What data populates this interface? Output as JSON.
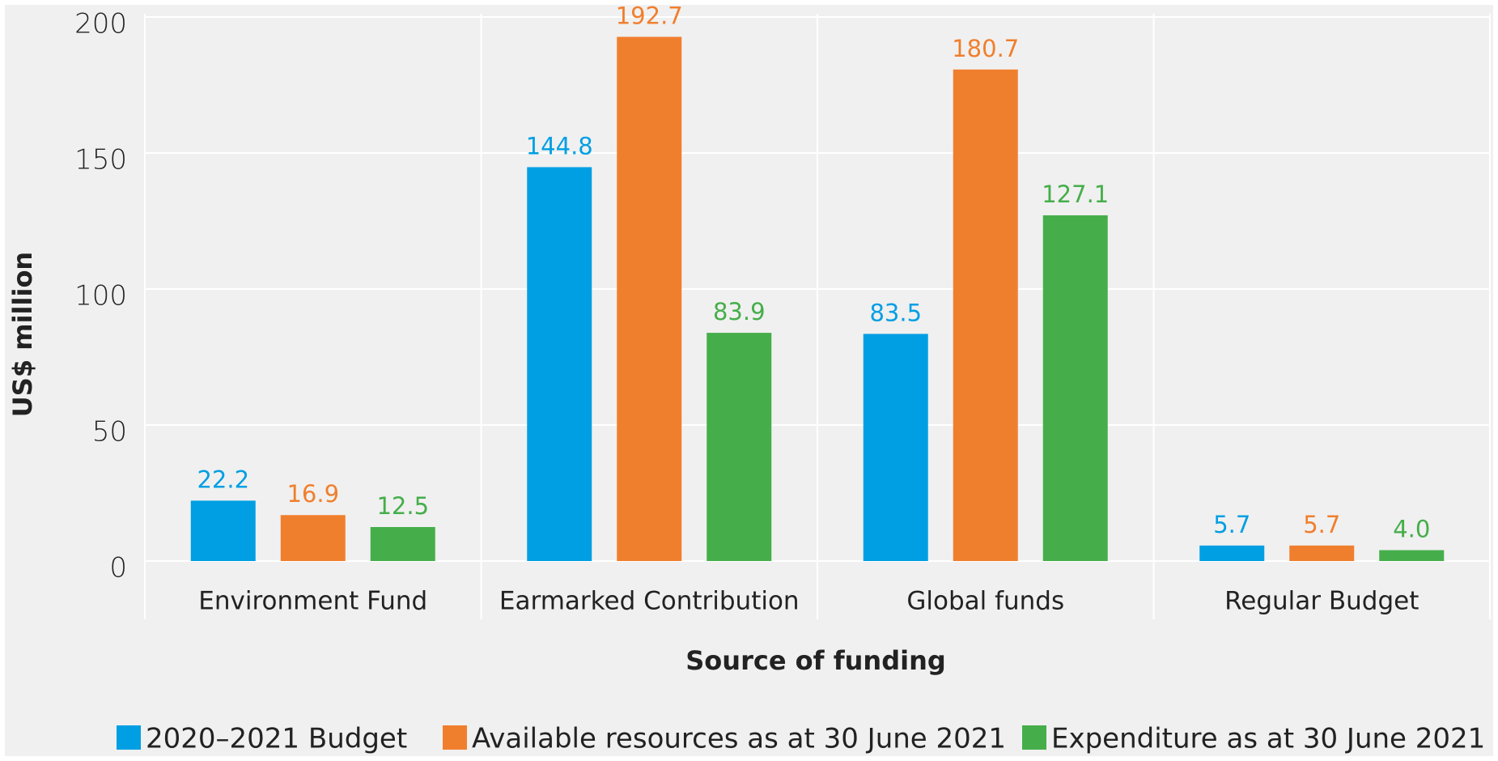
{
  "chart_data": {
    "type": "bar",
    "xlabel": "Source of funding",
    "ylabel": "US$ million",
    "categories": [
      "Environment Fund",
      "Earmarked Contribution",
      "Global funds",
      "Regular Budget"
    ],
    "series": [
      {
        "name": "2020–2021 Budget",
        "color": "#009fe3",
        "values": [
          22.2,
          144.8,
          83.5,
          5.7
        ]
      },
      {
        "name": "Available resources as at 30 June 2021",
        "color": "#f07f2d",
        "values": [
          16.9,
          192.7,
          180.7,
          5.7
        ]
      },
      {
        "name": "Expenditure as at 30 June 2021",
        "color": "#45ae4a",
        "values": [
          12.5,
          83.9,
          127.1,
          4
        ],
        "value_labels": [
          "12.5",
          "83.9",
          "127.1",
          "4.0"
        ]
      }
    ],
    "ylim": [
      0,
      200
    ],
    "yticks": [
      0,
      50,
      100,
      150,
      200
    ],
    "grid": true,
    "legend": "bottom"
  }
}
